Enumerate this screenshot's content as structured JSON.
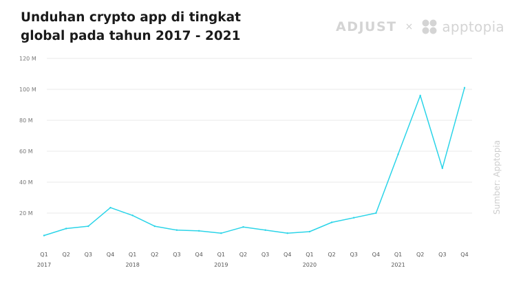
{
  "header": {
    "title": "Unduhan crypto app di tingkat global pada tahun 2017 - 2021",
    "logo_adjust": "ADJUST",
    "logo_separator": "×",
    "logo_apptopia": "apptopia"
  },
  "source": "Sumber: Apptopia",
  "chart_data": {
    "type": "line",
    "title": "Unduhan crypto app di tingkat global pada tahun 2017 - 2021",
    "xlabel": "",
    "ylabel": "",
    "ylim": [
      0,
      120
    ],
    "y_ticks": [
      {
        "value": 20,
        "label": "20 M"
      },
      {
        "value": 40,
        "label": "40 M"
      },
      {
        "value": 60,
        "label": "60 M"
      },
      {
        "value": 80,
        "label": "80 M"
      },
      {
        "value": 100,
        "label": "100 M"
      },
      {
        "value": 120,
        "label": "120 M"
      }
    ],
    "categories": [
      "Q1",
      "Q2",
      "Q3",
      "Q4",
      "Q1",
      "Q2",
      "Q3",
      "Q4",
      "Q1",
      "Q2",
      "Q3",
      "Q4",
      "Q1",
      "Q2",
      "Q3",
      "Q4",
      "Q1",
      "Q2",
      "Q3",
      "Q4"
    ],
    "years": [
      {
        "label": "2017",
        "index": 0
      },
      {
        "label": "2018",
        "index": 4
      },
      {
        "label": "2019",
        "index": 8
      },
      {
        "label": "2020",
        "index": 12
      },
      {
        "label": "2021",
        "index": 16
      }
    ],
    "series": [
      {
        "values": [
          5.5,
          10,
          11.5,
          23.5,
          18.5,
          11.5,
          9,
          8.5,
          7,
          11,
          9,
          7,
          8,
          14,
          17,
          20,
          58,
          96,
          49,
          101
        ]
      }
    ],
    "grid": true,
    "line_color": "#2ad4e8",
    "grid_color": "#e9e9e9"
  }
}
